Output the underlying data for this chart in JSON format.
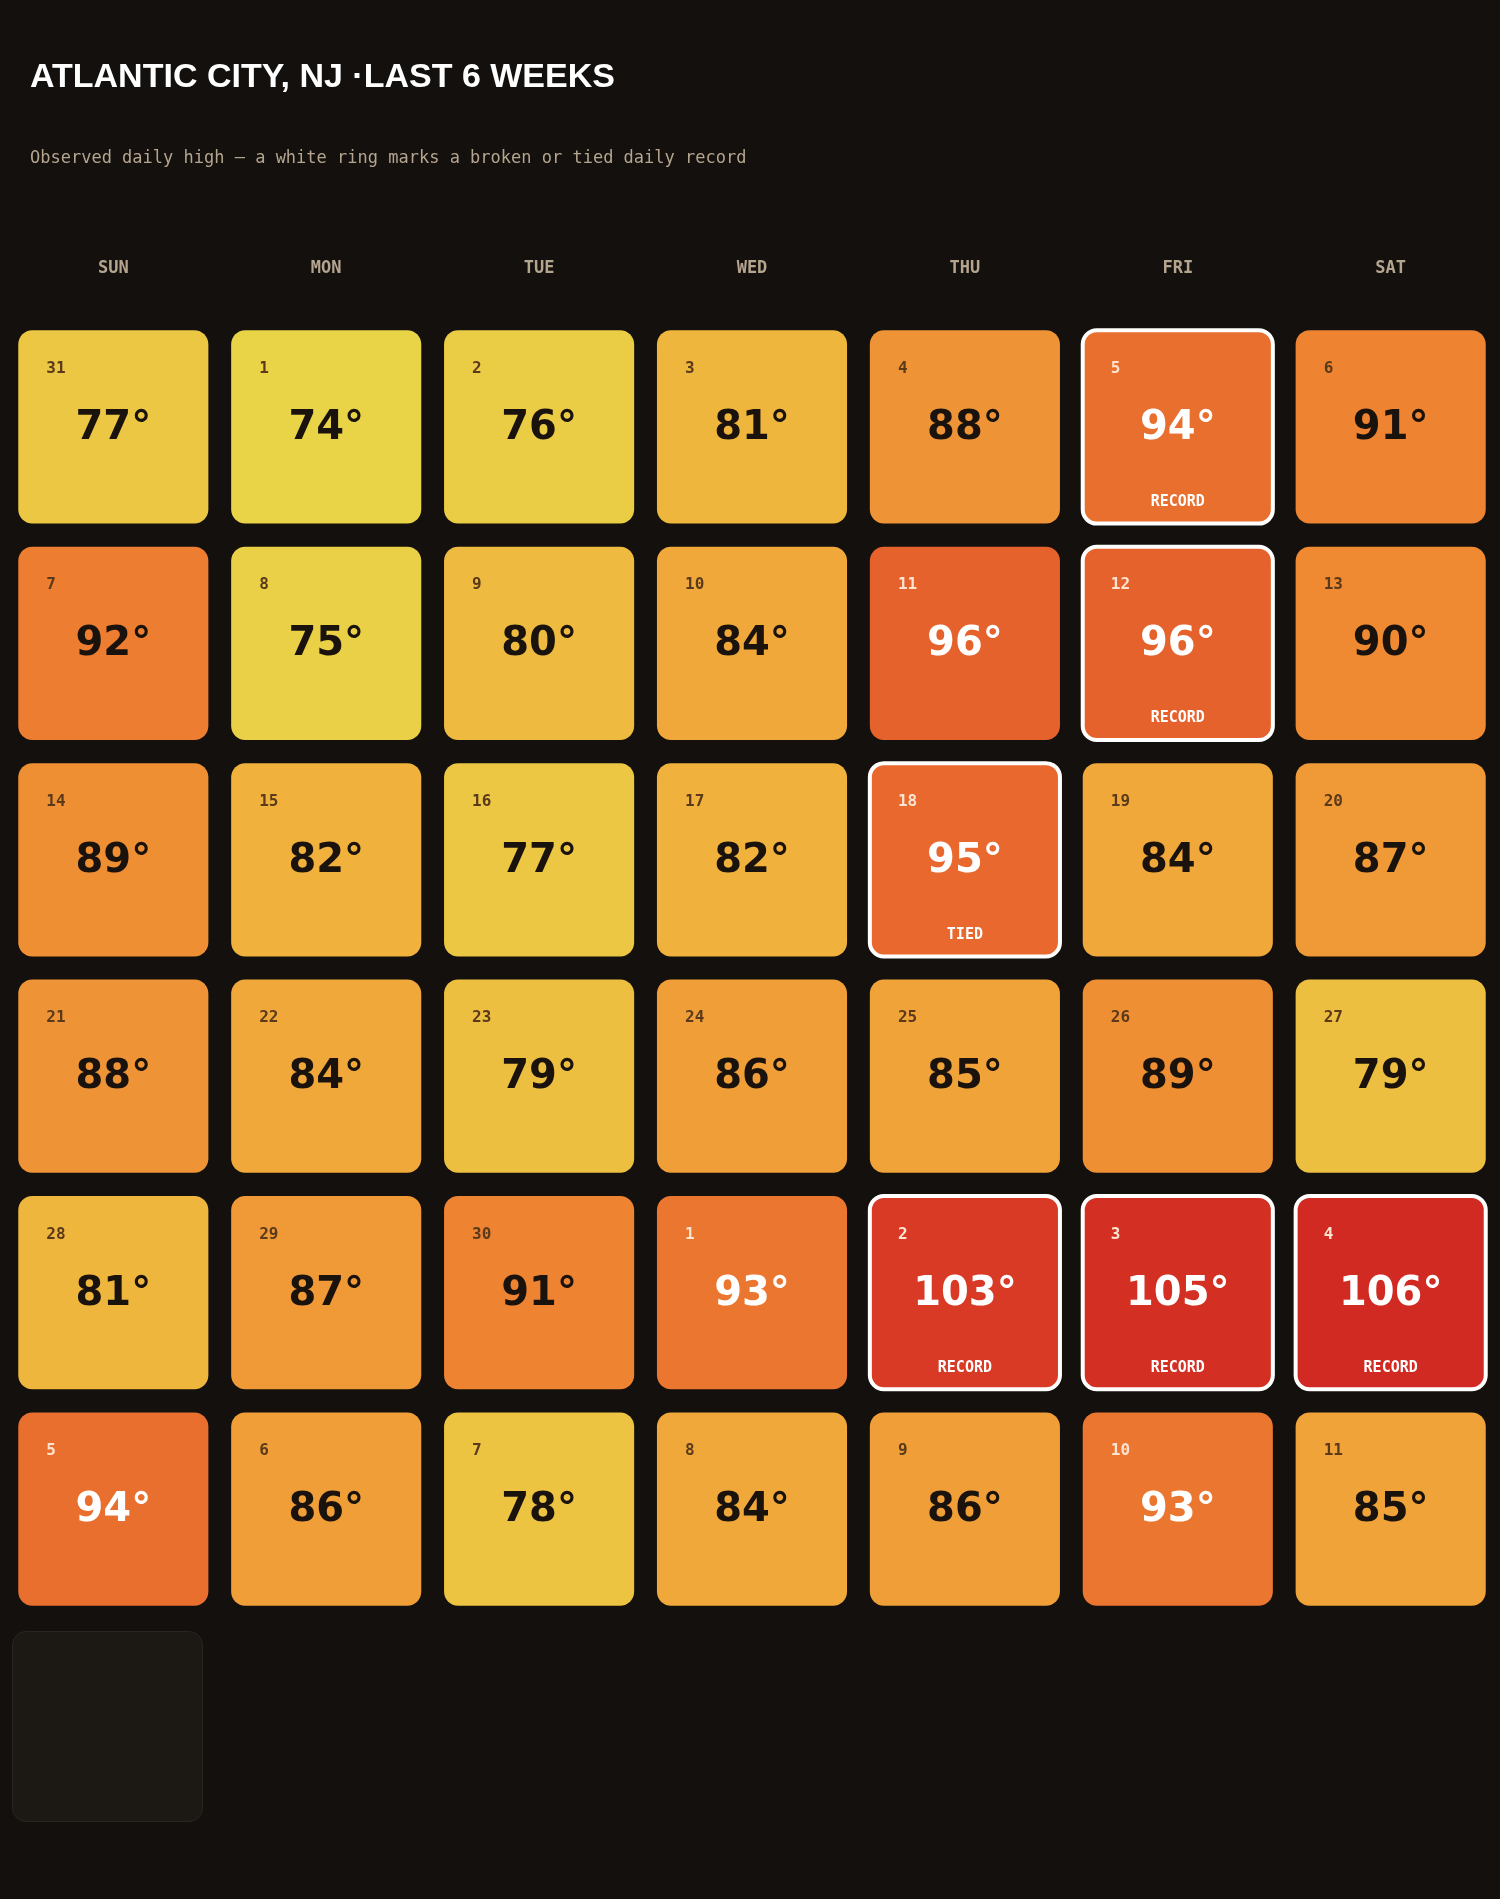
{
  "chart_data": {
    "type": "heatmap",
    "title": "ATLANTIC CITY, NJ ·LAST 6 WEEKS",
    "subtitle": "Observed daily high — a white ring marks a broken or tied daily record",
    "categories": [
      "SUN",
      "MON",
      "TUE",
      "WED",
      "THU",
      "FRI",
      "SAT"
    ],
    "y_categories": [
      null,
      null,
      null,
      null,
      null,
      null
    ],
    "cells": [
      [
        77,
        74,
        76,
        81,
        88,
        94,
        91
      ],
      [
        92,
        75,
        80,
        84,
        96,
        96,
        90
      ],
      [
        89,
        82,
        77,
        82,
        95,
        84,
        87
      ],
      [
        88,
        84,
        79,
        86,
        85,
        89,
        79
      ],
      [
        81,
        87,
        91,
        93,
        103,
        105,
        106
      ],
      [
        94,
        86,
        78,
        84,
        86,
        93,
        85
      ]
    ],
    "cell_labels": [
      [
        "77°",
        "74°",
        "76°",
        "81°",
        "88°",
        "94°$_{RECORD}$",
        "91°"
      ],
      [
        "92°",
        "75°",
        "80°",
        "84°",
        "96°",
        "96°$_{RECORD}$",
        "90°"
      ],
      [
        "89°",
        "82°",
        "77°",
        "82°",
        "95°$_{TIED}$",
        "84°",
        "87°"
      ],
      [
        "88°",
        "84°",
        "79°",
        "86°",
        "85°",
        "89°",
        "79°"
      ],
      [
        "81°",
        "87°",
        "91°",
        "93°",
        "103°$_{RECORD}$",
        "105°$_{RECORD}$",
        "106°$_{RECORD}$"
      ],
      [
        "94°",
        "86°",
        "78°",
        "84°",
        "86°",
        "93°",
        "85°"
      ]
    ],
    "annotations": [
      "31",
      "1",
      "2",
      "3",
      "4",
      "5",
      "6",
      "7",
      "8",
      "9",
      "10",
      "11",
      "12",
      "13",
      "14",
      "15",
      "16",
      "17",
      "18",
      "19",
      "20",
      "21",
      "22",
      "23",
      "24",
      "25",
      "26",
      "27",
      "28",
      "29",
      "30",
      "1",
      "2",
      "3",
      "4",
      "5",
      "6",
      "7",
      "8",
      "9",
      "10",
      "11"
    ]
  }
}
